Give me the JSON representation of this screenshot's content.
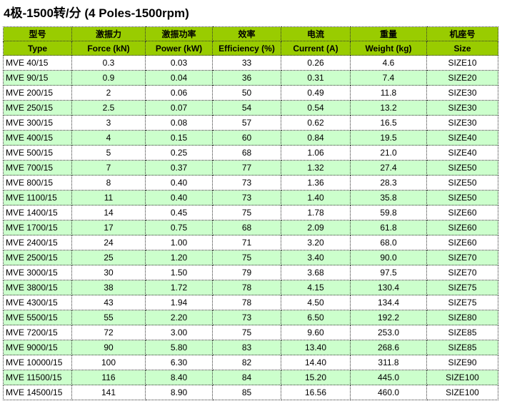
{
  "title": "4极-1500转/分 (4 Poles-1500rpm)",
  "colors": {
    "header": "#99cc00",
    "alt_row": "#ccffcc"
  },
  "headers_cn": [
    "型号",
    "激振力",
    "激振功率",
    "效率",
    "电流",
    "重量",
    "机座号"
  ],
  "headers_en": [
    "Type",
    "Force (kN)",
    "Power (kW)",
    "Efficiency (%)",
    "Current (A)",
    "Weight (kg)",
    "Size"
  ],
  "rows": [
    [
      "MVE 40/15",
      "0.3",
      "0.03",
      "33",
      "0.26",
      "4.6",
      "SIZE10"
    ],
    [
      "MVE 90/15",
      "0.9",
      "0.04",
      "36",
      "0.31",
      "7.4",
      "SIZE20"
    ],
    [
      "MVE 200/15",
      "2",
      "0.06",
      "50",
      "0.49",
      "11.8",
      "SIZE30"
    ],
    [
      "MVE 250/15",
      "2.5",
      "0.07",
      "54",
      "0.54",
      "13.2",
      "SIZE30"
    ],
    [
      "MVE 300/15",
      "3",
      "0.08",
      "57",
      "0.62",
      "16.5",
      "SIZE30"
    ],
    [
      "MVE 400/15",
      "4",
      "0.15",
      "60",
      "0.84",
      "19.5",
      "SIZE40"
    ],
    [
      "MVE 500/15",
      "5",
      "0.25",
      "68",
      "1.06",
      "21.0",
      "SIZE40"
    ],
    [
      "MVE 700/15",
      "7",
      "0.37",
      "77",
      "1.32",
      "27.4",
      "SIZE50"
    ],
    [
      "MVE 800/15",
      "8",
      "0.40",
      "73",
      "1.36",
      "28.3",
      "SIZE50"
    ],
    [
      "MVE 1100/15",
      "11",
      "0.40",
      "73",
      "1.40",
      "35.8",
      "SIZE50"
    ],
    [
      "MVE 1400/15",
      "14",
      "0.45",
      "75",
      "1.78",
      "59.8",
      "SIZE60"
    ],
    [
      "MVE 1700/15",
      "17",
      "0.75",
      "68",
      "2.09",
      "61.8",
      "SIZE60"
    ],
    [
      "MVE 2400/15",
      "24",
      "1.00",
      "71",
      "3.20",
      "68.0",
      "SIZE60"
    ],
    [
      "MVE 2500/15",
      "25",
      "1.20",
      "75",
      "3.40",
      "90.0",
      "SIZE70"
    ],
    [
      "MVE 3000/15",
      "30",
      "1.50",
      "79",
      "3.68",
      "97.5",
      "SIZE70"
    ],
    [
      "MVE 3800/15",
      "38",
      "1.72",
      "78",
      "4.15",
      "130.4",
      "SIZE75"
    ],
    [
      "MVE 4300/15",
      "43",
      "1.94",
      "78",
      "4.50",
      "134.4",
      "SIZE75"
    ],
    [
      "MVE 5500/15",
      "55",
      "2.20",
      "73",
      "6.50",
      "192.2",
      "SIZE80"
    ],
    [
      "MVE 7200/15",
      "72",
      "3.00",
      "75",
      "9.60",
      "253.0",
      "SIZE85"
    ],
    [
      "MVE 9000/15",
      "90",
      "5.80",
      "83",
      "13.40",
      "268.6",
      "SIZE85"
    ],
    [
      "MVE 10000/15",
      "100",
      "6.30",
      "82",
      "14.40",
      "311.8",
      "SIZE90"
    ],
    [
      "MVE 11500/15",
      "116",
      "8.40",
      "84",
      "15.20",
      "445.0",
      "SIZE100"
    ],
    [
      "MVE 14500/15",
      "141",
      "8.90",
      "85",
      "16.56",
      "460.0",
      "SIZE100"
    ]
  ]
}
